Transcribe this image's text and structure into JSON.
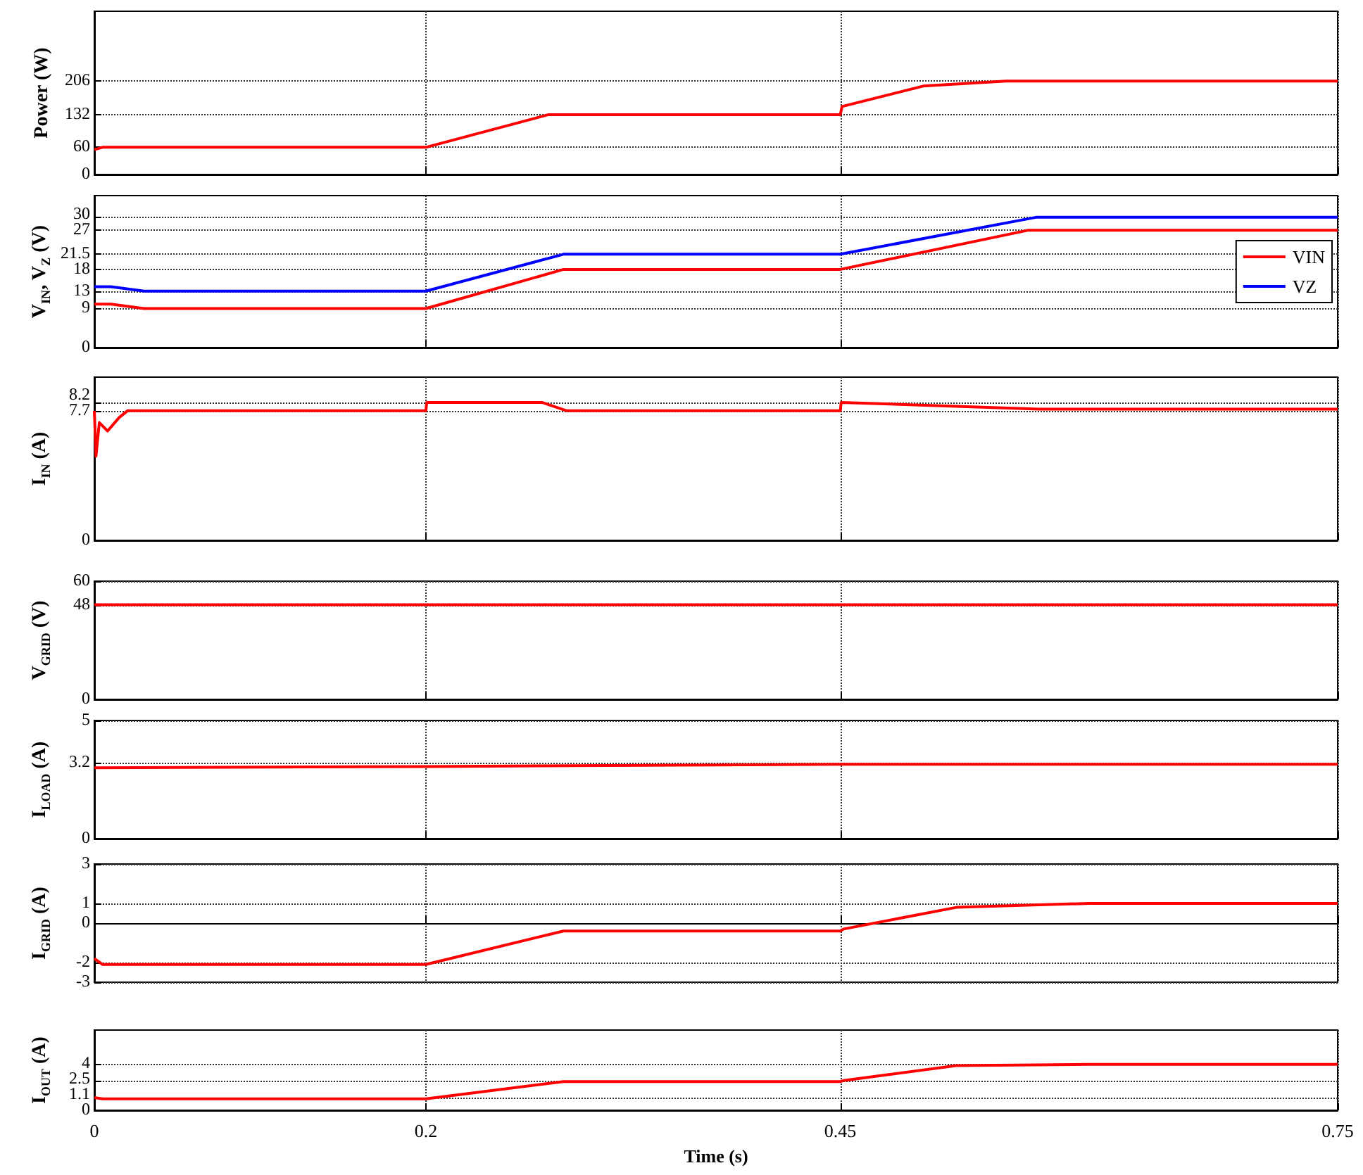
{
  "chart_data": [
    {
      "type": "line",
      "ylabel": "Power (W)",
      "xlim": [
        0,
        0.75
      ],
      "xticks": [
        0,
        0.2,
        0.45,
        0.75
      ],
      "ylim": [
        0,
        360
      ],
      "yticks": [
        0,
        60,
        132,
        206
      ],
      "tick_labels": "y",
      "grid": true,
      "marker": "none",
      "series": [
        {
          "color": "#ff0000",
          "x": [
            0,
            0.005,
            0.2,
            0.274,
            0.45,
            0.451,
            0.5,
            0.55,
            0.75
          ],
          "values": [
            55,
            60,
            60,
            132,
            132,
            150,
            195,
            206,
            206
          ]
        }
      ]
    },
    {
      "type": "line",
      "ylabel": "V$_{IN}$, V$_{Z}$ (V)",
      "xlim": [
        0,
        0.75
      ],
      "xticks": [
        0,
        0.2,
        0.45,
        0.75
      ],
      "ylim": [
        0,
        35
      ],
      "yticks": [
        0,
        9,
        13,
        18,
        21.5,
        27,
        30
      ],
      "tick_labels": "y",
      "grid": true,
      "marker": "none",
      "legend": "right",
      "series": [
        {
          "name": "VIN",
          "color": "#ff0000",
          "x": [
            0,
            0.01,
            0.03,
            0.2,
            0.283,
            0.45,
            0.563,
            0.75
          ],
          "values": [
            10,
            10,
            9,
            9,
            18,
            18,
            27,
            27
          ]
        },
        {
          "name": "VZ",
          "color": "#0000ff",
          "x": [
            0,
            0.01,
            0.03,
            0.2,
            0.283,
            0.45,
            0.568,
            0.75
          ],
          "values": [
            14,
            14,
            13,
            13,
            21.5,
            21.5,
            30,
            30
          ]
        }
      ]
    },
    {
      "type": "line",
      "ylabel": "I$_{IN}$ (A)",
      "xlim": [
        0,
        0.75
      ],
      "xticks": [
        0,
        0.2,
        0.45,
        0.75
      ],
      "ylim": [
        0,
        9.7
      ],
      "yticks": [
        0,
        7.7,
        8.2
      ],
      "tick_labels": "y",
      "grid": true,
      "marker": "none",
      "series": [
        {
          "color": "#ff0000",
          "x": [
            0,
            0.001,
            0.003,
            0.008,
            0.015,
            0.02,
            0.2,
            0.2005,
            0.27,
            0.285,
            0.45,
            0.4505,
            0.57,
            0.75
          ],
          "values": [
            7.7,
            5,
            7,
            6.5,
            7.3,
            7.7,
            7.7,
            8.2,
            8.2,
            7.7,
            7.7,
            8.2,
            7.8,
            7.8
          ]
        }
      ]
    },
    {
      "type": "line",
      "ylabel": "V$_{GRID}$ (V)",
      "xlim": [
        0,
        0.75
      ],
      "xticks": [
        0,
        0.2,
        0.45,
        0.75
      ],
      "ylim": [
        0,
        60
      ],
      "yticks": [
        0,
        48,
        60
      ],
      "tick_labels": "y",
      "grid": true,
      "marker": "none",
      "series": [
        {
          "color": "#ff0000",
          "x": [
            0,
            0.75
          ],
          "values": [
            48,
            48
          ]
        }
      ]
    },
    {
      "type": "line",
      "ylabel": "I$_{LOAD}$ (A)",
      "xlim": [
        0,
        0.75
      ],
      "xticks": [
        0,
        0.2,
        0.45,
        0.75
      ],
      "ylim": [
        0,
        5
      ],
      "yticks": [
        0,
        3.2,
        5
      ],
      "tick_labels": "y",
      "grid": true,
      "marker": "none",
      "series": [
        {
          "color": "#ff0000",
          "x": [
            0,
            0.2,
            0.45,
            0.75
          ],
          "values": [
            3.0,
            3.05,
            3.15,
            3.15
          ]
        }
      ]
    },
    {
      "type": "line",
      "ylabel": "I$_{GRID}$ (A)",
      "xlim": [
        0,
        0.75
      ],
      "xticks": [
        0,
        0.2,
        0.45,
        0.75
      ],
      "ylim": [
        -3,
        3
      ],
      "yticks": [
        -3,
        -2,
        0,
        1,
        3
      ],
      "tick_labels": "y",
      "grid": true,
      "marker": "none",
      "series": [
        {
          "color": "#ff0000",
          "x": [
            0,
            0.005,
            0.2,
            0.283,
            0.45,
            0.452,
            0.52,
            0.6,
            0.75
          ],
          "values": [
            -1.8,
            -2.1,
            -2.1,
            -0.4,
            -0.4,
            -0.3,
            0.8,
            1,
            1
          ]
        }
      ]
    },
    {
      "type": "line",
      "ylabel": "I$_{OUT}$ (A)",
      "xlabel": "Time (s)",
      "xlim": [
        0,
        0.75
      ],
      "xticks": [
        0,
        0.2,
        0.45,
        0.75
      ],
      "ylim": [
        0,
        7
      ],
      "yticks": [
        0,
        1.1,
        2.5,
        4
      ],
      "grid": true,
      "marker": "none",
      "series": [
        {
          "color": "#ff0000",
          "x": [
            0,
            0.005,
            0.2,
            0.283,
            0.45,
            0.452,
            0.52,
            0.6,
            0.75
          ],
          "values": [
            1.1,
            1,
            1,
            2.5,
            2.5,
            2.6,
            3.9,
            4,
            4
          ]
        }
      ]
    }
  ]
}
